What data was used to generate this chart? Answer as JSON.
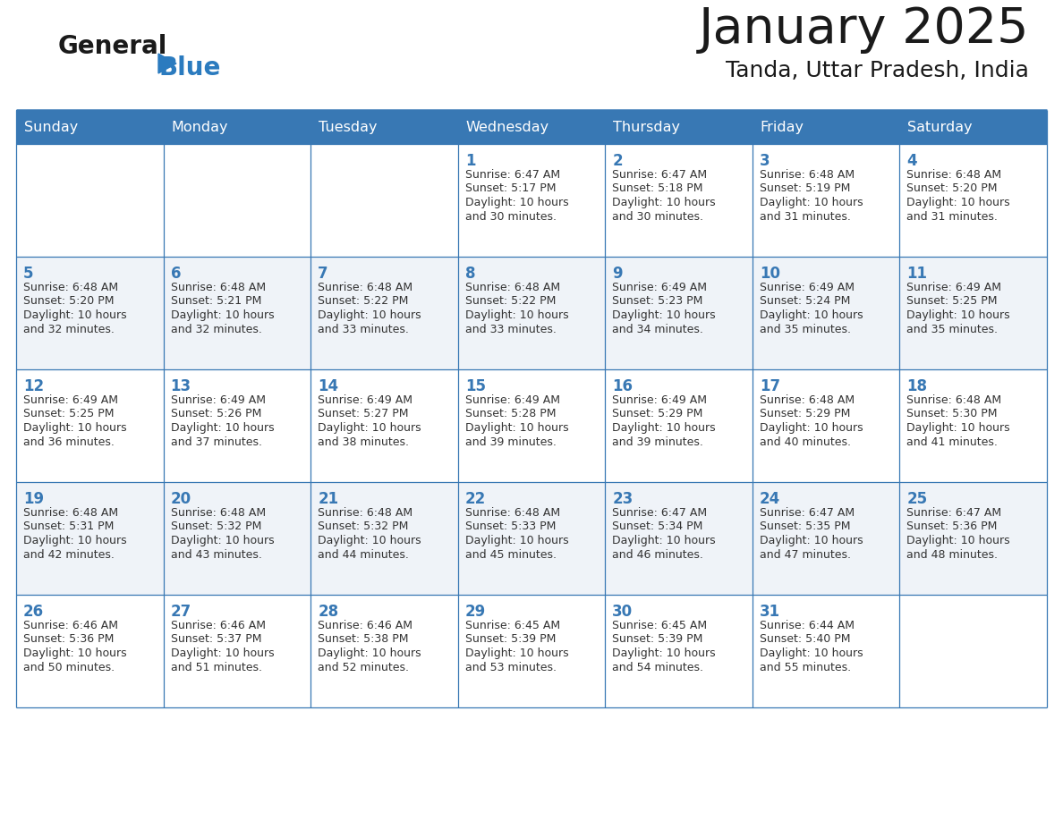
{
  "title": "January 2025",
  "subtitle": "Tanda, Uttar Pradesh, India",
  "days_of_week": [
    "Sunday",
    "Monday",
    "Tuesday",
    "Wednesday",
    "Thursday",
    "Friday",
    "Saturday"
  ],
  "header_bg_color": "#3878b4",
  "header_text_color": "#ffffff",
  "cell_bg_white": "#ffffff",
  "cell_bg_gray": "#eff3f8",
  "border_color": "#3878b4",
  "day_number_color": "#3878b4",
  "text_color": "#333333",
  "title_color": "#1a1a1a",
  "subtitle_color": "#1a1a1a",
  "logo_general_color": "#1a1a1a",
  "logo_blue_color": "#2b7bbf",
  "calendar_data": [
    {
      "day": 1,
      "col": 3,
      "row": 0,
      "sunrise": "6:47 AM",
      "sunset": "5:17 PM",
      "daylight_line1": "Daylight: 10 hours",
      "daylight_line2": "and 30 minutes."
    },
    {
      "day": 2,
      "col": 4,
      "row": 0,
      "sunrise": "6:47 AM",
      "sunset": "5:18 PM",
      "daylight_line1": "Daylight: 10 hours",
      "daylight_line2": "and 30 minutes."
    },
    {
      "day": 3,
      "col": 5,
      "row": 0,
      "sunrise": "6:48 AM",
      "sunset": "5:19 PM",
      "daylight_line1": "Daylight: 10 hours",
      "daylight_line2": "and 31 minutes."
    },
    {
      "day": 4,
      "col": 6,
      "row": 0,
      "sunrise": "6:48 AM",
      "sunset": "5:20 PM",
      "daylight_line1": "Daylight: 10 hours",
      "daylight_line2": "and 31 minutes."
    },
    {
      "day": 5,
      "col": 0,
      "row": 1,
      "sunrise": "6:48 AM",
      "sunset": "5:20 PM",
      "daylight_line1": "Daylight: 10 hours",
      "daylight_line2": "and 32 minutes."
    },
    {
      "day": 6,
      "col": 1,
      "row": 1,
      "sunrise": "6:48 AM",
      "sunset": "5:21 PM",
      "daylight_line1": "Daylight: 10 hours",
      "daylight_line2": "and 32 minutes."
    },
    {
      "day": 7,
      "col": 2,
      "row": 1,
      "sunrise": "6:48 AM",
      "sunset": "5:22 PM",
      "daylight_line1": "Daylight: 10 hours",
      "daylight_line2": "and 33 minutes."
    },
    {
      "day": 8,
      "col": 3,
      "row": 1,
      "sunrise": "6:48 AM",
      "sunset": "5:22 PM",
      "daylight_line1": "Daylight: 10 hours",
      "daylight_line2": "and 33 minutes."
    },
    {
      "day": 9,
      "col": 4,
      "row": 1,
      "sunrise": "6:49 AM",
      "sunset": "5:23 PM",
      "daylight_line1": "Daylight: 10 hours",
      "daylight_line2": "and 34 minutes."
    },
    {
      "day": 10,
      "col": 5,
      "row": 1,
      "sunrise": "6:49 AM",
      "sunset": "5:24 PM",
      "daylight_line1": "Daylight: 10 hours",
      "daylight_line2": "and 35 minutes."
    },
    {
      "day": 11,
      "col": 6,
      "row": 1,
      "sunrise": "6:49 AM",
      "sunset": "5:25 PM",
      "daylight_line1": "Daylight: 10 hours",
      "daylight_line2": "and 35 minutes."
    },
    {
      "day": 12,
      "col": 0,
      "row": 2,
      "sunrise": "6:49 AM",
      "sunset": "5:25 PM",
      "daylight_line1": "Daylight: 10 hours",
      "daylight_line2": "and 36 minutes."
    },
    {
      "day": 13,
      "col": 1,
      "row": 2,
      "sunrise": "6:49 AM",
      "sunset": "5:26 PM",
      "daylight_line1": "Daylight: 10 hours",
      "daylight_line2": "and 37 minutes."
    },
    {
      "day": 14,
      "col": 2,
      "row": 2,
      "sunrise": "6:49 AM",
      "sunset": "5:27 PM",
      "daylight_line1": "Daylight: 10 hours",
      "daylight_line2": "and 38 minutes."
    },
    {
      "day": 15,
      "col": 3,
      "row": 2,
      "sunrise": "6:49 AM",
      "sunset": "5:28 PM",
      "daylight_line1": "Daylight: 10 hours",
      "daylight_line2": "and 39 minutes."
    },
    {
      "day": 16,
      "col": 4,
      "row": 2,
      "sunrise": "6:49 AM",
      "sunset": "5:29 PM",
      "daylight_line1": "Daylight: 10 hours",
      "daylight_line2": "and 39 minutes."
    },
    {
      "day": 17,
      "col": 5,
      "row": 2,
      "sunrise": "6:48 AM",
      "sunset": "5:29 PM",
      "daylight_line1": "Daylight: 10 hours",
      "daylight_line2": "and 40 minutes."
    },
    {
      "day": 18,
      "col": 6,
      "row": 2,
      "sunrise": "6:48 AM",
      "sunset": "5:30 PM",
      "daylight_line1": "Daylight: 10 hours",
      "daylight_line2": "and 41 minutes."
    },
    {
      "day": 19,
      "col": 0,
      "row": 3,
      "sunrise": "6:48 AM",
      "sunset": "5:31 PM",
      "daylight_line1": "Daylight: 10 hours",
      "daylight_line2": "and 42 minutes."
    },
    {
      "day": 20,
      "col": 1,
      "row": 3,
      "sunrise": "6:48 AM",
      "sunset": "5:32 PM",
      "daylight_line1": "Daylight: 10 hours",
      "daylight_line2": "and 43 minutes."
    },
    {
      "day": 21,
      "col": 2,
      "row": 3,
      "sunrise": "6:48 AM",
      "sunset": "5:32 PM",
      "daylight_line1": "Daylight: 10 hours",
      "daylight_line2": "and 44 minutes."
    },
    {
      "day": 22,
      "col": 3,
      "row": 3,
      "sunrise": "6:48 AM",
      "sunset": "5:33 PM",
      "daylight_line1": "Daylight: 10 hours",
      "daylight_line2": "and 45 minutes."
    },
    {
      "day": 23,
      "col": 4,
      "row": 3,
      "sunrise": "6:47 AM",
      "sunset": "5:34 PM",
      "daylight_line1": "Daylight: 10 hours",
      "daylight_line2": "and 46 minutes."
    },
    {
      "day": 24,
      "col": 5,
      "row": 3,
      "sunrise": "6:47 AM",
      "sunset": "5:35 PM",
      "daylight_line1": "Daylight: 10 hours",
      "daylight_line2": "and 47 minutes."
    },
    {
      "day": 25,
      "col": 6,
      "row": 3,
      "sunrise": "6:47 AM",
      "sunset": "5:36 PM",
      "daylight_line1": "Daylight: 10 hours",
      "daylight_line2": "and 48 minutes."
    },
    {
      "day": 26,
      "col": 0,
      "row": 4,
      "sunrise": "6:46 AM",
      "sunset": "5:36 PM",
      "daylight_line1": "Daylight: 10 hours",
      "daylight_line2": "and 50 minutes."
    },
    {
      "day": 27,
      "col": 1,
      "row": 4,
      "sunrise": "6:46 AM",
      "sunset": "5:37 PM",
      "daylight_line1": "Daylight: 10 hours",
      "daylight_line2": "and 51 minutes."
    },
    {
      "day": 28,
      "col": 2,
      "row": 4,
      "sunrise": "6:46 AM",
      "sunset": "5:38 PM",
      "daylight_line1": "Daylight: 10 hours",
      "daylight_line2": "and 52 minutes."
    },
    {
      "day": 29,
      "col": 3,
      "row": 4,
      "sunrise": "6:45 AM",
      "sunset": "5:39 PM",
      "daylight_line1": "Daylight: 10 hours",
      "daylight_line2": "and 53 minutes."
    },
    {
      "day": 30,
      "col": 4,
      "row": 4,
      "sunrise": "6:45 AM",
      "sunset": "5:39 PM",
      "daylight_line1": "Daylight: 10 hours",
      "daylight_line2": "and 54 minutes."
    },
    {
      "day": 31,
      "col": 5,
      "row": 4,
      "sunrise": "6:44 AM",
      "sunset": "5:40 PM",
      "daylight_line1": "Daylight: 10 hours",
      "daylight_line2": "and 55 minutes."
    }
  ]
}
